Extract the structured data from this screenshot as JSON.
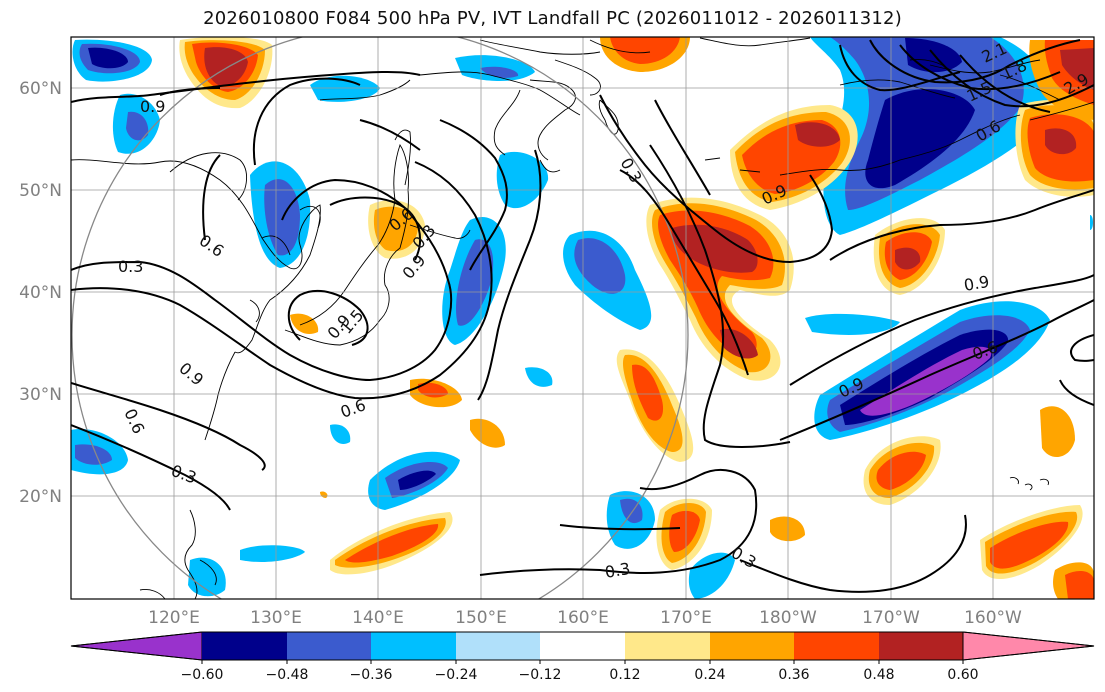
{
  "figure": {
    "title": "2026010800 F084 500 hPa PV, IVT Landfall PC (2026011012 - 2026011312)"
  },
  "axes": {
    "lat_ticks": [
      "60°N",
      "50°N",
      "40°N",
      "30°N",
      "20°N"
    ],
    "lon_ticks": [
      "120°E",
      "130°E",
      "140°E",
      "150°E",
      "160°E",
      "170°E",
      "180°W",
      "170°W",
      "160°W"
    ]
  },
  "colorbar": {
    "tick_labels": [
      "−0.60",
      "−0.48",
      "−0.36",
      "−0.24",
      "−0.12",
      "0.12",
      "0.24",
      "0.36",
      "0.48",
      "0.60"
    ],
    "colors": [
      "#9932CC",
      "#00008B",
      "#3B5BCE",
      "#00BFFF",
      "#B0E0FA",
      "#FFFFFF",
      "#FFE88A",
      "#FFA500",
      "#FF4500",
      "#B22222",
      "#FF88AA"
    ]
  },
  "contour_labels": [
    "0.9",
    "0.6",
    "0.3",
    "0.9",
    "0.9",
    "0.6",
    "1.5",
    "0.9",
    "0.3",
    "0.6",
    "0.3",
    "0.6",
    "0.9",
    "0.9",
    "0.6",
    "0.9",
    "0.3",
    "0.3",
    "2.1",
    "1.8",
    "1.5",
    "2.9",
    "0.6",
    "0.3"
  ],
  "legend_colors": {
    "land": "#000000",
    "grid": "#9a9a9a",
    "circle": "#888888"
  }
}
